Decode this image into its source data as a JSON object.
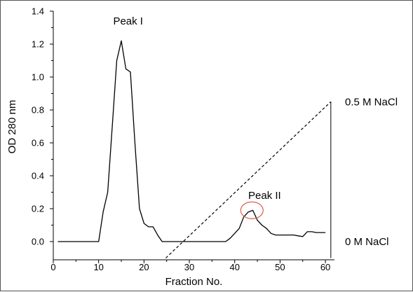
{
  "chart_data": {
    "type": "line",
    "title": "",
    "xlabel": "Fraction No.",
    "ylabel": "OD 280 nm",
    "xlim": [
      0,
      62
    ],
    "ylim": [
      0,
      1.4
    ],
    "x_ticks": [
      0,
      10,
      20,
      30,
      40,
      50,
      60
    ],
    "x_tick_labels": [
      "0",
      "10",
      "20",
      "30",
      "40",
      "50",
      "60"
    ],
    "y_ticks": [
      0.0,
      0.2,
      0.4,
      0.6,
      0.8,
      1.0,
      1.2,
      1.4
    ],
    "y_tick_labels": [
      "0.0",
      "0.2",
      "0.4",
      "0.6",
      "0.8",
      "1.0",
      "1.2",
      "1.4"
    ],
    "grid": false,
    "series": [
      {
        "color": "#000000",
        "style": "solid",
        "x": [
          1,
          2,
          4,
          6,
          8,
          9,
          10,
          11,
          12,
          13,
          14,
          15,
          16,
          17,
          18,
          19,
          20,
          21,
          22,
          23,
          24,
          26,
          30,
          34,
          38,
          39,
          40,
          41,
          42,
          43,
          44,
          45,
          46,
          47,
          48,
          49,
          50,
          51,
          52,
          53,
          54,
          55,
          56,
          57,
          58,
          59,
          60
        ],
        "y": [
          0.0,
          0.0,
          0.0,
          0.0,
          0.0,
          0.0,
          0.0,
          0.18,
          0.3,
          0.7,
          1.1,
          1.22,
          1.05,
          1.03,
          0.6,
          0.2,
          0.11,
          0.09,
          0.09,
          0.04,
          0.0,
          0.0,
          0.0,
          0.0,
          0.0,
          0.02,
          0.05,
          0.08,
          0.15,
          0.18,
          0.19,
          0.13,
          0.1,
          0.08,
          0.05,
          0.04,
          0.04,
          0.04,
          0.04,
          0.04,
          0.035,
          0.03,
          0.06,
          0.06,
          0.055,
          0.055,
          0.055
        ]
      },
      {
        "color": "#000000",
        "style": "dashed",
        "x": [
          24.8,
          61.2
        ],
        "y": [
          -0.1,
          0.85
        ]
      }
    ],
    "annotations": [
      {
        "text": "Peak I",
        "x": 16.5,
        "y": 1.32
      },
      {
        "text": "Peak II",
        "x": 46.6,
        "y": 0.26
      }
    ],
    "highlight_ellipse": {
      "x": 43.8,
      "y": 0.19,
      "color": "#e06050"
    },
    "right_axis": {
      "x": 61.2,
      "y_range": [
        -0.1,
        0.85
      ],
      "labels": [
        {
          "text": "0.5 M NaCl",
          "y": 0.85
        },
        {
          "text": "0 M NaCl",
          "y": 0.0
        }
      ]
    }
  }
}
